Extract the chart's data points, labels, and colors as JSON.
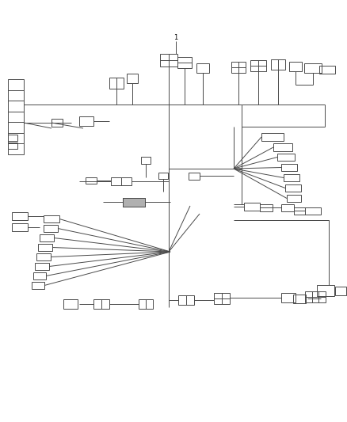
{
  "bg_color": "#ffffff",
  "lc": "#4a4a4a",
  "lw": 0.7,
  "fig_w": 4.38,
  "fig_h": 5.33,
  "label1": "1"
}
